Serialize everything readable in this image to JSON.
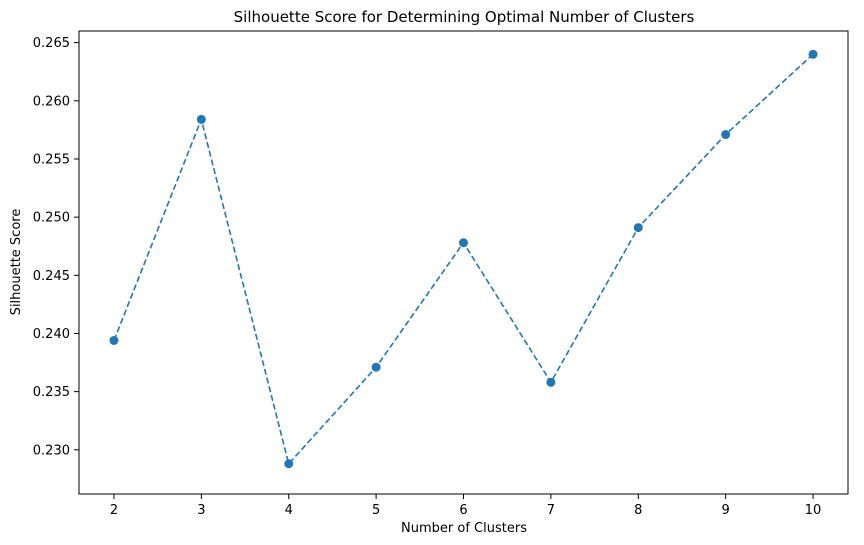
{
  "chart_data": {
    "type": "line",
    "title": "Silhouette Score for Determining Optimal Number of Clusters",
    "xlabel": "Number of Clusters",
    "ylabel": "Silhouette Score",
    "x": [
      2,
      3,
      4,
      5,
      6,
      7,
      8,
      9,
      10
    ],
    "series": [
      {
        "values": [
          0.2394,
          0.2584,
          0.2288,
          0.2371,
          0.2478,
          0.2358,
          0.2491,
          0.2571,
          0.264
        ],
        "color": "#1f77b4",
        "line_style": "dashed",
        "marker": "circle"
      }
    ],
    "xlim": [
      1.6,
      10.4
    ],
    "ylim": [
      0.2262,
      0.266
    ],
    "xticks": [
      2,
      3,
      4,
      5,
      6,
      7,
      8,
      9,
      10
    ],
    "xtick_labels": [
      "2",
      "3",
      "4",
      "5",
      "6",
      "7",
      "8",
      "9",
      "10"
    ],
    "yticks": [
      0.23,
      0.235,
      0.24,
      0.245,
      0.25,
      0.255,
      0.26,
      0.265
    ],
    "ytick_labels": [
      "0.230",
      "0.235",
      "0.240",
      "0.245",
      "0.250",
      "0.255",
      "0.260",
      "0.265"
    ],
    "grid": false,
    "legend": false
  }
}
